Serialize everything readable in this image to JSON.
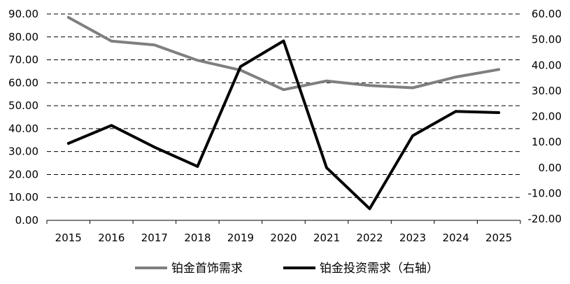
{
  "chart_data": {
    "type": "line",
    "categories": [
      "2015",
      "2016",
      "2017",
      "2018",
      "2019",
      "2020",
      "2021",
      "2022",
      "2023",
      "2024",
      "2025"
    ],
    "series": [
      {
        "name": "铂金首饰需求",
        "axis": "left",
        "color": "#7f7f7f",
        "values": [
          88.5,
          78.2,
          76.5,
          69.8,
          65.5,
          57.0,
          60.8,
          58.8,
          57.8,
          62.5,
          65.8
        ]
      },
      {
        "name": "铂金投资需求（右轴）",
        "axis": "right",
        "color": "#000000",
        "values": [
          9.5,
          16.5,
          8.0,
          0.5,
          39.5,
          49.5,
          0.0,
          -16.0,
          12.5,
          22.0,
          21.5
        ]
      }
    ],
    "y_left": {
      "ylim": [
        0,
        90
      ],
      "ticks": [
        "0.00",
        "10.00",
        "20.00",
        "30.00",
        "40.00",
        "50.00",
        "60.00",
        "70.00",
        "80.00",
        "90.00"
      ]
    },
    "y_right": {
      "ylim": [
        -20,
        60
      ],
      "ticks": [
        "-20.00",
        "-10.00",
        "0.00",
        "10.00",
        "20.00",
        "30.00",
        "40.00",
        "50.00",
        "60.00"
      ]
    },
    "grid": "horizontal-dashed",
    "legend_position": "bottom"
  }
}
